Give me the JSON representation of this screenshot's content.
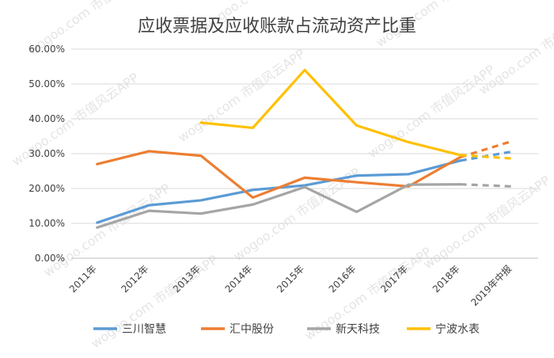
{
  "chart_data": {
    "type": "line",
    "title": "应收票据及应收账款占流动资产比重",
    "xlabel": "",
    "ylabel": "",
    "categories": [
      "2011年",
      "2012年",
      "2013年",
      "2014年",
      "2015年",
      "2016年",
      "2017年",
      "2018年",
      "2019年中报"
    ],
    "ylim": [
      0,
      0.6
    ],
    "yticks": [
      "0.00%",
      "10.00%",
      "20.00%",
      "30.00%",
      "40.00%",
      "50.00%",
      "60.00%"
    ],
    "grid": true,
    "legend_position": "bottom",
    "dashed_last_segment": true,
    "series": [
      {
        "name": "三川智慧",
        "color": "#5b9bd5",
        "values": [
          0.102,
          0.152,
          0.166,
          0.196,
          0.209,
          0.237,
          0.241,
          0.28,
          0.306
        ]
      },
      {
        "name": "汇中股份",
        "color": "#ed7d31",
        "values": [
          0.27,
          0.307,
          0.294,
          0.174,
          0.231,
          0.218,
          0.206,
          0.29,
          0.336
        ]
      },
      {
        "name": "新天科技",
        "color": "#a5a5a5",
        "values": [
          0.088,
          0.136,
          0.128,
          0.154,
          0.204,
          0.133,
          0.211,
          0.212,
          0.206
        ]
      },
      {
        "name": "宁波水表",
        "color": "#ffc000",
        "values": [
          null,
          null,
          0.389,
          0.374,
          0.54,
          0.381,
          0.333,
          0.296,
          0.286
        ]
      }
    ]
  },
  "watermark": "wogoo.com 市值风云APP"
}
